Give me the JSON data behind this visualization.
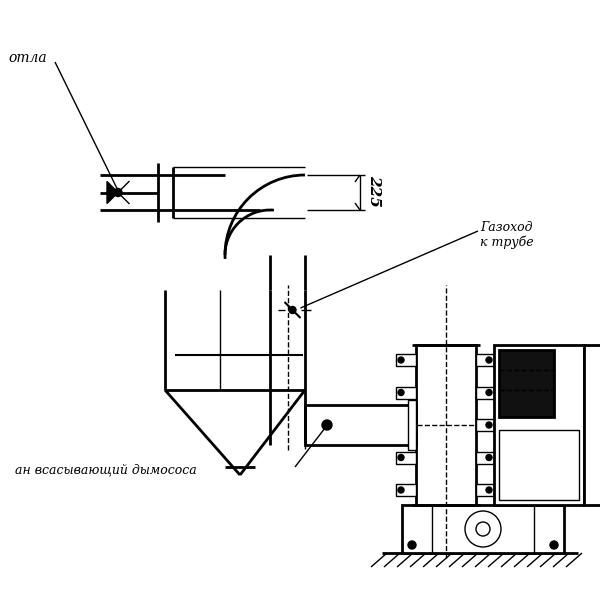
{
  "bg_color": "#ffffff",
  "line_color": "#000000",
  "figsize": [
    6.0,
    6.0
  ],
  "dpi": 100,
  "label_otla": "отла",
  "label_gazohod": "Газоход\nк трубе",
  "label_vsan": "ан всасывающий дымососа",
  "dim_225": "225"
}
